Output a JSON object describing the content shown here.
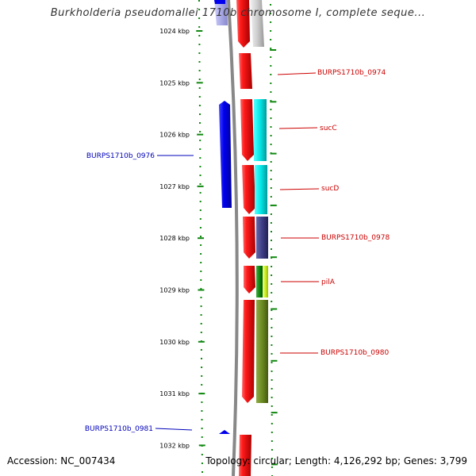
{
  "title": "Burkholderia pseudomallei 1710b chromosome I, complete seque...",
  "footer": {
    "accession": "Accession: NC_007434",
    "topology": "Topology: circular; Length: 4,126,292 bp; Genes: 3,799"
  },
  "map": {
    "colors": {
      "tick": "#118811",
      "backbone": "#888888",
      "label_forward": "#cc0000",
      "label_reverse": "#0000bb"
    },
    "kbp_ticks": [
      {
        "label": "1024 kbp",
        "value": 1024
      },
      {
        "label": "1025 kbp",
        "value": 1025
      },
      {
        "label": "1026 kbp",
        "value": 1026
      },
      {
        "label": "1027 kbp",
        "value": 1027
      },
      {
        "label": "1028 kbp",
        "value": 1028
      },
      {
        "label": "1029 kbp",
        "value": 1029
      },
      {
        "label": "1030 kbp",
        "value": 1030
      },
      {
        "label": "1031 kbp",
        "value": 1031
      },
      {
        "label": "1032 kbp",
        "value": 1032
      }
    ],
    "gene_labels": [
      {
        "text": "BURPS1710b_0974",
        "strand": "forward"
      },
      {
        "text": "sucC",
        "strand": "forward"
      },
      {
        "text": "BURPS1710b_0976",
        "strand": "reverse"
      },
      {
        "text": "sucD",
        "strand": "forward"
      },
      {
        "text": "BURPS1710b_0978",
        "strand": "forward"
      },
      {
        "text": "pilA",
        "strand": "forward"
      },
      {
        "text": "BURPS1710b_0980",
        "strand": "forward"
      },
      {
        "text": "BURPS1710b_0981",
        "strand": "reverse"
      }
    ]
  }
}
